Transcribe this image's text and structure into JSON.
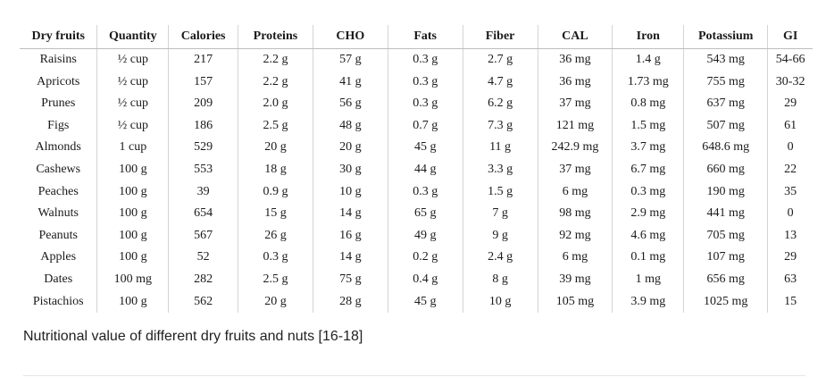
{
  "table": {
    "headers": [
      "Dry fruits",
      "Quantity",
      "Calories",
      "Proteins",
      "CHO",
      "Fats",
      "Fiber",
      "CAL",
      "Iron",
      "Potassium",
      "GI"
    ],
    "rows": [
      [
        "Raisins",
        "½ cup",
        "217",
        "2.2 g",
        "57 g",
        "0.3 g",
        "2.7 g",
        "36 mg",
        "1.4 g",
        "543 mg",
        "54-66"
      ],
      [
        "Apricots",
        "½ cup",
        "157",
        "2.2 g",
        "41 g",
        "0.3 g",
        "4.7 g",
        "36 mg",
        "1.73 mg",
        "755 mg",
        "30-32"
      ],
      [
        "Prunes",
        "½ cup",
        "209",
        "2.0 g",
        "56 g",
        "0.3 g",
        "6.2 g",
        "37 mg",
        "0.8 mg",
        "637 mg",
        "29"
      ],
      [
        "Figs",
        "½ cup",
        "186",
        "2.5 g",
        "48 g",
        "0.7 g",
        "7.3 g",
        "121 mg",
        "1.5 mg",
        "507 mg",
        "61"
      ],
      [
        "Almonds",
        "1 cup",
        "529",
        "20 g",
        "20 g",
        "45 g",
        "11 g",
        "242.9 mg",
        "3.7 mg",
        "648.6 mg",
        "0"
      ],
      [
        "Cashews",
        "100 g",
        "553",
        "18 g",
        "30 g",
        "44 g",
        "3.3 g",
        "37 mg",
        "6.7 mg",
        "660 mg",
        "22"
      ],
      [
        "Peaches",
        "100 g",
        "39",
        "0.9 g",
        "10 g",
        "0.3 g",
        "1.5 g",
        "6 mg",
        "0.3 mg",
        "190 mg",
        "35"
      ],
      [
        "Walnuts",
        "100 g",
        "654",
        "15 g",
        "14 g",
        "65 g",
        "7 g",
        "98 mg",
        "2.9 mg",
        "441 mg",
        "0"
      ],
      [
        "Peanuts",
        "100 g",
        "567",
        "26 g",
        "16 g",
        "49 g",
        "9 g",
        "92 mg",
        "4.6 mg",
        "705 mg",
        "13"
      ],
      [
        "Apples",
        "100 g",
        "52",
        "0.3 g",
        "14 g",
        "0.2 g",
        "2.4 g",
        "6 mg",
        "0.1 mg",
        "107 mg",
        "29"
      ],
      [
        "Dates",
        "100 mg",
        "282",
        "2.5 g",
        "75 g",
        "0.4 g",
        "8 g",
        "39 mg",
        "1 mg",
        "656 mg",
        "63"
      ],
      [
        "Pistachios",
        "100 g",
        "562",
        "20 g",
        "28 g",
        "45 g",
        "10 g",
        "105 mg",
        "3.9 mg",
        "1025 mg",
        "15"
      ]
    ]
  },
  "caption": "Nutritional value of different dry fruits and nuts [16-18]"
}
